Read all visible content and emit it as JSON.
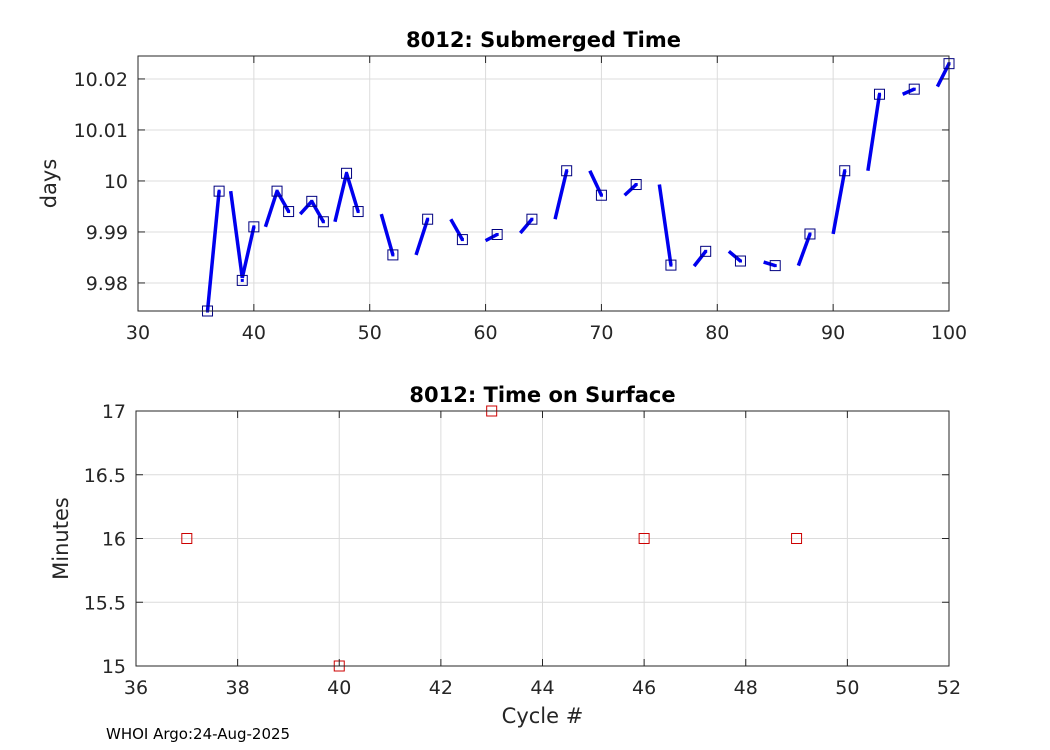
{
  "chart_data": [
    {
      "type": "line",
      "title": "8012: Submerged Time",
      "xlabel": "",
      "ylabel": "days",
      "xlim": [
        30,
        100
      ],
      "ylim": [
        9.9745,
        10.0245
      ],
      "xticks": [
        30,
        40,
        50,
        60,
        70,
        80,
        90,
        100
      ],
      "yticks": [
        9.98,
        9.99,
        10,
        10.01,
        10.02
      ],
      "ytick_labels": [
        "9.98",
        "9.99",
        "10",
        "10.01",
        "10.02"
      ],
      "grid": true,
      "marker_color": "#000080",
      "line_color": "#0000ee",
      "points": {
        "x": [
          36,
          37,
          39,
          40,
          42,
          43,
          45,
          46,
          48,
          49,
          52,
          55,
          58,
          61,
          64,
          67,
          70,
          73,
          76,
          79,
          82,
          85,
          88,
          91,
          94,
          97,
          100
        ],
        "y": [
          9.9745,
          9.998,
          9.9805,
          9.991,
          9.998,
          9.994,
          9.996,
          9.992,
          10.0015,
          9.994,
          9.9855,
          9.9925,
          9.9885,
          9.9895,
          9.9925,
          10.002,
          9.9972,
          9.9993,
          9.9835,
          9.9862,
          9.9843,
          9.9834,
          9.9896,
          10.002,
          10.017,
          10.018,
          10.023
        ]
      },
      "segments": [
        {
          "x": [
            36,
            37
          ],
          "y": [
            9.9745,
            9.998
          ]
        },
        {
          "x": [
            38,
            39
          ],
          "y": [
            9.998,
            9.981
          ]
        },
        {
          "x": [
            39,
            40
          ],
          "y": [
            9.981,
            9.991
          ]
        },
        {
          "x": [
            41,
            42
          ],
          "y": [
            9.991,
            9.998
          ]
        },
        {
          "x": [
            42,
            43
          ],
          "y": [
            9.998,
            9.994
          ]
        },
        {
          "x": [
            44,
            45
          ],
          "y": [
            9.9935,
            9.996
          ]
        },
        {
          "x": [
            45,
            46
          ],
          "y": [
            9.996,
            9.992
          ]
        },
        {
          "x": [
            47,
            48
          ],
          "y": [
            9.992,
            10.0015
          ]
        },
        {
          "x": [
            48,
            49
          ],
          "y": [
            10.0015,
            9.994
          ]
        },
        {
          "x": [
            51,
            52
          ],
          "y": [
            9.9935,
            9.9855
          ]
        },
        {
          "x": [
            54,
            55
          ],
          "y": [
            9.9855,
            9.9925
          ]
        },
        {
          "x": [
            57,
            58
          ],
          "y": [
            9.9925,
            9.9885
          ]
        },
        {
          "x": [
            60,
            61
          ],
          "y": [
            9.9883,
            9.9895
          ]
        },
        {
          "x": [
            63,
            64
          ],
          "y": [
            9.9898,
            9.9925
          ]
        },
        {
          "x": [
            66,
            67
          ],
          "y": [
            9.9925,
            10.002
          ]
        },
        {
          "x": [
            69,
            70
          ],
          "y": [
            10.002,
            9.9972
          ]
        },
        {
          "x": [
            72,
            73
          ],
          "y": [
            9.9972,
            9.9993
          ]
        },
        {
          "x": [
            75,
            76
          ],
          "y": [
            9.9993,
            9.9835
          ]
        },
        {
          "x": [
            78,
            79
          ],
          "y": [
            9.9833,
            9.9862
          ]
        },
        {
          "x": [
            81,
            82
          ],
          "y": [
            9.9862,
            9.9843
          ]
        },
        {
          "x": [
            84,
            85
          ],
          "y": [
            9.9841,
            9.9834
          ]
        },
        {
          "x": [
            87,
            88
          ],
          "y": [
            9.9834,
            9.9896
          ]
        },
        {
          "x": [
            90,
            91
          ],
          "y": [
            9.9896,
            10.002
          ]
        },
        {
          "x": [
            93,
            94
          ],
          "y": [
            10.002,
            10.017
          ]
        },
        {
          "x": [
            96,
            97
          ],
          "y": [
            10.017,
            10.018
          ]
        },
        {
          "x": [
            99,
            100
          ],
          "y": [
            10.0185,
            10.023
          ]
        }
      ]
    },
    {
      "type": "scatter",
      "title": "8012: Time on Surface",
      "xlabel": "Cycle #",
      "ylabel": "Minutes",
      "xlim": [
        36,
        52
      ],
      "ylim": [
        15,
        17
      ],
      "xticks": [
        36,
        38,
        40,
        42,
        44,
        46,
        48,
        50,
        52
      ],
      "yticks": [
        15,
        15.5,
        16,
        16.5,
        17
      ],
      "ytick_labels": [
        "15",
        "15.5",
        "16",
        "16.5",
        "17"
      ],
      "grid": true,
      "marker_color": "#cc0000",
      "points": {
        "x": [
          37,
          40,
          43,
          46,
          49
        ],
        "y": [
          16,
          15,
          17,
          16,
          16
        ]
      }
    }
  ],
  "footer": "WHOI Argo:24-Aug-2025"
}
